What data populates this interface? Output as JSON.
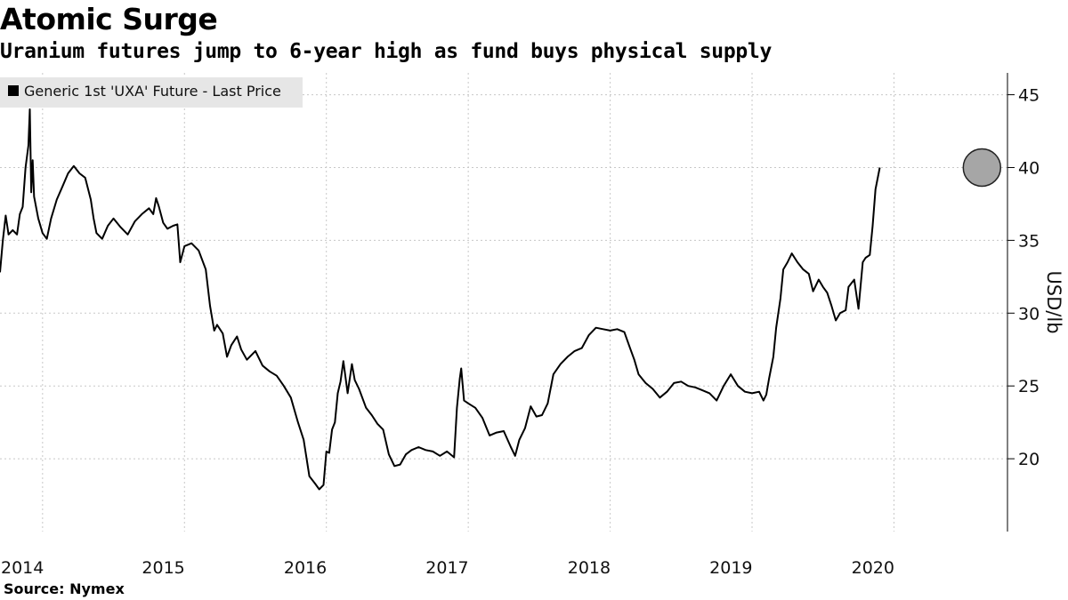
{
  "header": {
    "title": "Atomic Surge",
    "subtitle": "Uranium futures jump to 6-year high as fund buys physical supply"
  },
  "footer": {
    "source": "Source: Nymex"
  },
  "colors": {
    "line": "#000000",
    "grid": "#c8c8c8",
    "legend_bg": "#e6e6e6",
    "highlight_fill": "#a6a6a6",
    "highlight_stroke": "#222222"
  },
  "chart_data": {
    "type": "line",
    "title": "Atomic Surge",
    "subtitle": "Uranium futures jump to 6-year high as fund buys physical supply",
    "xlabel": "",
    "ylabel": "USD/lb",
    "legend": {
      "position": "top-left",
      "entries": [
        "Generic 1st 'UXA' Future - Last Price"
      ]
    },
    "grid": true,
    "y_axis_side": "right",
    "xlim": [
      2014.0,
      2021.1
    ],
    "ylim": [
      15,
      46.5
    ],
    "y_ticks": [
      20,
      25,
      30,
      35,
      40,
      45
    ],
    "x_ticks": [
      {
        "label": "2014",
        "value": 2014.0
      },
      {
        "label": "2015",
        "value": 2015.0
      },
      {
        "label": "2016",
        "value": 2016.0
      },
      {
        "label": "2017",
        "value": 2017.0
      },
      {
        "label": "2018",
        "value": 2018.0
      },
      {
        "label": "2019",
        "value": 2019.0
      },
      {
        "label": "2020",
        "value": 2020.0
      }
    ],
    "x_grid": [
      2014.3,
      2015.3,
      2016.3,
      2017.3,
      2018.3,
      2019.3,
      2020.3
    ],
    "highlight": {
      "x": 2020.92,
      "y": 40.0
    },
    "series": [
      {
        "name": "Generic 1st 'UXA' Future - Last Price",
        "points": [
          [
            2014.0,
            32.8
          ],
          [
            2014.02,
            35.0
          ],
          [
            2014.04,
            36.7
          ],
          [
            2014.06,
            35.4
          ],
          [
            2014.09,
            35.7
          ],
          [
            2014.12,
            35.4
          ],
          [
            2014.14,
            36.8
          ],
          [
            2014.16,
            37.3
          ],
          [
            2014.18,
            40.0
          ],
          [
            2014.2,
            41.5
          ],
          [
            2014.21,
            44.0
          ],
          [
            2014.22,
            38.3
          ],
          [
            2014.23,
            40.5
          ],
          [
            2014.24,
            38.0
          ],
          [
            2014.27,
            36.5
          ],
          [
            2014.3,
            35.5
          ],
          [
            2014.33,
            35.1
          ],
          [
            2014.36,
            36.5
          ],
          [
            2014.4,
            37.8
          ],
          [
            2014.44,
            38.7
          ],
          [
            2014.48,
            39.6
          ],
          [
            2014.52,
            40.1
          ],
          [
            2014.56,
            39.6
          ],
          [
            2014.6,
            39.3
          ],
          [
            2014.64,
            37.8
          ],
          [
            2014.66,
            36.5
          ],
          [
            2014.68,
            35.5
          ],
          [
            2014.72,
            35.1
          ],
          [
            2014.76,
            36.0
          ],
          [
            2014.8,
            36.5
          ],
          [
            2014.85,
            35.9
          ],
          [
            2014.9,
            35.4
          ],
          [
            2014.95,
            36.3
          ],
          [
            2015.0,
            36.8
          ],
          [
            2015.05,
            37.2
          ],
          [
            2015.08,
            36.8
          ],
          [
            2015.1,
            37.9
          ],
          [
            2015.12,
            37.3
          ],
          [
            2015.15,
            36.2
          ],
          [
            2015.18,
            35.8
          ],
          [
            2015.22,
            36.0
          ],
          [
            2015.25,
            36.1
          ],
          [
            2015.27,
            33.5
          ],
          [
            2015.3,
            34.6
          ],
          [
            2015.35,
            34.8
          ],
          [
            2015.4,
            34.3
          ],
          [
            2015.45,
            33.0
          ],
          [
            2015.48,
            30.5
          ],
          [
            2015.51,
            28.8
          ],
          [
            2015.53,
            29.2
          ],
          [
            2015.57,
            28.6
          ],
          [
            2015.6,
            27.0
          ],
          [
            2015.63,
            27.8
          ],
          [
            2015.67,
            28.4
          ],
          [
            2015.7,
            27.5
          ],
          [
            2015.74,
            26.8
          ],
          [
            2015.8,
            27.4
          ],
          [
            2015.85,
            26.4
          ],
          [
            2015.9,
            26.0
          ],
          [
            2015.95,
            25.7
          ],
          [
            2016.0,
            25.0
          ],
          [
            2016.05,
            24.2
          ],
          [
            2016.1,
            22.5
          ],
          [
            2016.14,
            21.3
          ],
          [
            2016.18,
            18.8
          ],
          [
            2016.22,
            18.3
          ],
          [
            2016.25,
            17.9
          ],
          [
            2016.28,
            18.2
          ],
          [
            2016.3,
            20.5
          ],
          [
            2016.32,
            20.4
          ],
          [
            2016.34,
            22.0
          ],
          [
            2016.36,
            22.5
          ],
          [
            2016.38,
            24.5
          ],
          [
            2016.4,
            25.3
          ],
          [
            2016.42,
            26.7
          ],
          [
            2016.45,
            24.5
          ],
          [
            2016.48,
            26.5
          ],
          [
            2016.5,
            25.4
          ],
          [
            2016.53,
            24.8
          ],
          [
            2016.58,
            23.5
          ],
          [
            2016.62,
            23.0
          ],
          [
            2016.66,
            22.4
          ],
          [
            2016.7,
            22.0
          ],
          [
            2016.74,
            20.3
          ],
          [
            2016.78,
            19.5
          ],
          [
            2016.82,
            19.6
          ],
          [
            2016.86,
            20.3
          ],
          [
            2016.9,
            20.6
          ],
          [
            2016.95,
            20.8
          ],
          [
            2017.0,
            20.6
          ],
          [
            2017.05,
            20.5
          ],
          [
            2017.1,
            20.2
          ],
          [
            2017.15,
            20.5
          ],
          [
            2017.2,
            20.1
          ],
          [
            2017.22,
            23.5
          ],
          [
            2017.24,
            25.5
          ],
          [
            2017.25,
            26.2
          ],
          [
            2017.27,
            24.0
          ],
          [
            2017.3,
            23.8
          ],
          [
            2017.35,
            23.5
          ],
          [
            2017.4,
            22.8
          ],
          [
            2017.45,
            21.6
          ],
          [
            2017.5,
            21.8
          ],
          [
            2017.55,
            21.9
          ],
          [
            2017.6,
            20.8
          ],
          [
            2017.63,
            20.2
          ],
          [
            2017.66,
            21.3
          ],
          [
            2017.7,
            22.1
          ],
          [
            2017.74,
            23.6
          ],
          [
            2017.78,
            22.9
          ],
          [
            2017.82,
            23.0
          ],
          [
            2017.86,
            23.8
          ],
          [
            2017.9,
            25.8
          ],
          [
            2017.95,
            26.5
          ],
          [
            2018.0,
            27.0
          ],
          [
            2018.05,
            27.4
          ],
          [
            2018.1,
            27.6
          ],
          [
            2018.15,
            28.5
          ],
          [
            2018.2,
            29.0
          ],
          [
            2018.25,
            28.9
          ],
          [
            2018.3,
            28.8
          ],
          [
            2018.35,
            28.9
          ],
          [
            2018.4,
            28.7
          ],
          [
            2018.44,
            27.6
          ],
          [
            2018.47,
            26.8
          ],
          [
            2018.5,
            25.8
          ],
          [
            2018.55,
            25.2
          ],
          [
            2018.6,
            24.8
          ],
          [
            2018.65,
            24.2
          ],
          [
            2018.7,
            24.6
          ],
          [
            2018.75,
            25.2
          ],
          [
            2018.8,
            25.3
          ],
          [
            2018.85,
            25.0
          ],
          [
            2018.9,
            24.9
          ],
          [
            2018.95,
            24.7
          ],
          [
            2019.0,
            24.5
          ],
          [
            2019.05,
            24.0
          ],
          [
            2019.1,
            25.0
          ],
          [
            2019.15,
            25.8
          ],
          [
            2019.2,
            25.0
          ],
          [
            2019.25,
            24.6
          ],
          [
            2019.3,
            24.5
          ],
          [
            2019.35,
            24.6
          ],
          [
            2019.38,
            24.0
          ],
          [
            2019.4,
            24.4
          ],
          [
            2019.42,
            25.5
          ],
          [
            2019.45,
            27.0
          ],
          [
            2019.47,
            29.0
          ],
          [
            2019.5,
            31.0
          ],
          [
            2019.52,
            33.0
          ],
          [
            2019.55,
            33.5
          ],
          [
            2019.58,
            34.1
          ],
          [
            2019.62,
            33.5
          ],
          [
            2019.66,
            33.0
          ],
          [
            2019.7,
            32.7
          ],
          [
            2019.73,
            31.5
          ],
          [
            2019.77,
            32.3
          ],
          [
            2019.8,
            31.8
          ],
          [
            2019.83,
            31.4
          ],
          [
            2019.86,
            30.5
          ],
          [
            2019.89,
            29.5
          ],
          [
            2019.92,
            30.0
          ],
          [
            2019.96,
            30.2
          ],
          [
            2019.98,
            31.8
          ],
          [
            2020.02,
            32.3
          ],
          [
            2020.05,
            30.3
          ],
          [
            2020.08,
            33.5
          ],
          [
            2020.1,
            33.8
          ],
          [
            2020.13,
            34.0
          ],
          [
            2020.15,
            36.0
          ],
          [
            2020.17,
            38.5
          ],
          [
            2020.2,
            40.0
          ]
        ]
      }
    ]
  }
}
